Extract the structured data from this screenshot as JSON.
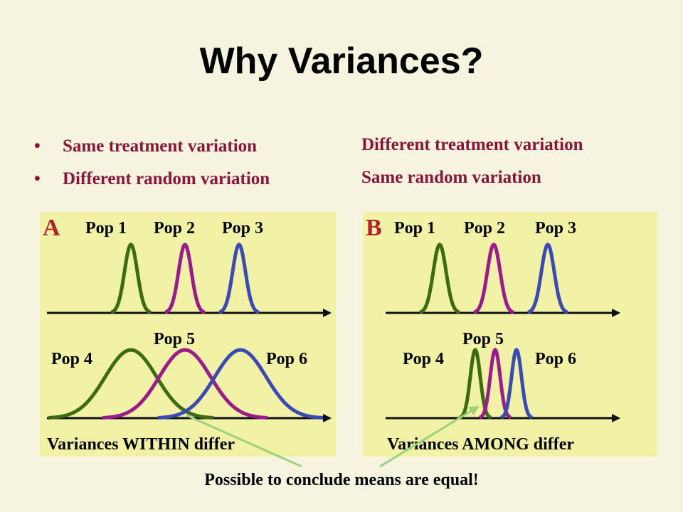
{
  "title": "Why Variances?",
  "left_bullets": [
    "Same treatment variation",
    "Different random variation"
  ],
  "right_lines": [
    "Different treatment variation",
    "Same random variation"
  ],
  "panels": {
    "a": {
      "letter": "A",
      "top_labels": [
        "Pop 1",
        "Pop 2",
        "Pop 3"
      ],
      "bottom_labels": [
        "Pop 4",
        "Pop 5",
        "Pop 6"
      ],
      "caption": "Variances WITHIN differ"
    },
    "b": {
      "letter": "B",
      "top_labels": [
        "Pop 1",
        "Pop 2",
        "Pop 3"
      ],
      "bottom_labels": [
        "Pop 4",
        "Pop 5",
        "Pop 6"
      ],
      "caption": "Variances AMONG differ"
    }
  },
  "conclusion": "Possible to conclude means are equal!",
  "colors": {
    "pop1": "#3b6b12",
    "pop2": "#9b1b8f",
    "pop3": "#3a4bb5",
    "text_accent": "#8a1538",
    "letter": "#b3202a",
    "panel": "#f2f2a6",
    "arrow": "#9ed17a"
  }
}
